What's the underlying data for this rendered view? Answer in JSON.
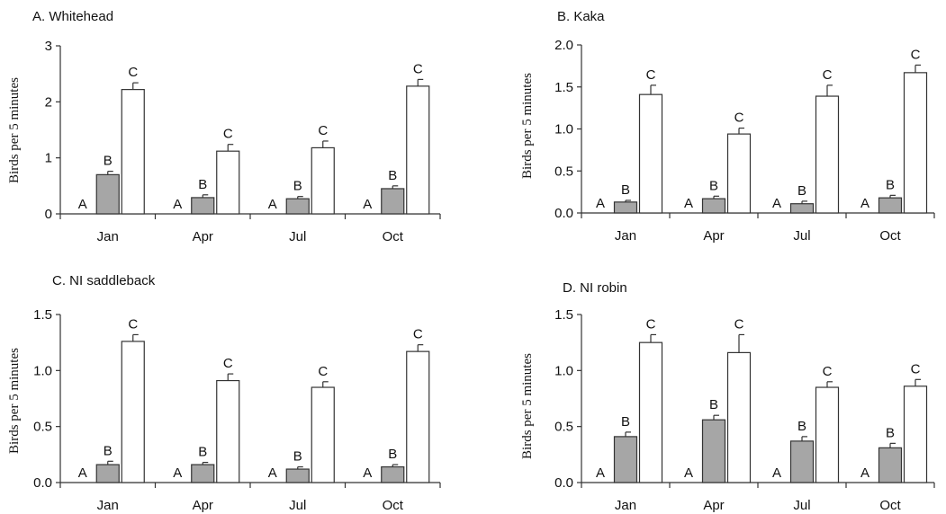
{
  "chart_data": [
    {
      "type": "bar",
      "title": "A. Whitehead",
      "ylabel": "Birds per 5 minutes",
      "xlabel": "",
      "categories": [
        "Jan",
        "Apr",
        "Jul",
        "Oct"
      ],
      "ylim": [
        0,
        3
      ],
      "yticks": [
        "0",
        "1",
        "2",
        "3"
      ],
      "series": [
        {
          "values": [
            0,
            0,
            0,
            0
          ],
          "errors": [
            0,
            0,
            0,
            0
          ],
          "letters": [
            "A",
            "A",
            "A",
            "A"
          ],
          "color": "#ffffff"
        },
        {
          "values": [
            0.7,
            0.29,
            0.27,
            0.45
          ],
          "errors": [
            0.06,
            0.05,
            0.04,
            0.05
          ],
          "letters": [
            "B",
            "B",
            "B",
            "B"
          ],
          "color": "#a6a6a6"
        },
        {
          "values": [
            2.22,
            1.12,
            1.18,
            2.28
          ],
          "errors": [
            0.12,
            0.12,
            0.12,
            0.12
          ],
          "letters": [
            "C",
            "C",
            "C",
            "C"
          ],
          "color": "#ffffff"
        }
      ]
    },
    {
      "type": "bar",
      "title": "B. Kaka",
      "ylabel": "Birds per 5 minutes",
      "xlabel": "",
      "categories": [
        "Jan",
        "Apr",
        "Jul",
        "Oct"
      ],
      "ylim": [
        0,
        2
      ],
      "yticks": [
        "0.0",
        "0.5",
        "1.0",
        "1.5",
        "2.0"
      ],
      "series": [
        {
          "values": [
            0,
            0,
            0,
            0
          ],
          "errors": [
            0,
            0,
            0,
            0
          ],
          "letters": [
            "A",
            "A",
            "A",
            "A"
          ],
          "color": "#ffffff"
        },
        {
          "values": [
            0.13,
            0.17,
            0.11,
            0.18
          ],
          "errors": [
            0.02,
            0.03,
            0.03,
            0.03
          ],
          "letters": [
            "B",
            "B",
            "B",
            "B"
          ],
          "color": "#a6a6a6"
        },
        {
          "values": [
            1.41,
            0.94,
            1.39,
            1.67
          ],
          "errors": [
            0.11,
            0.07,
            0.13,
            0.09
          ],
          "letters": [
            "C",
            "C",
            "C",
            "C"
          ],
          "color": "#ffffff"
        }
      ]
    },
    {
      "type": "bar",
      "title": "C. NI saddleback",
      "ylabel": "Birds per 5 minutes",
      "xlabel": "",
      "categories": [
        "Jan",
        "Apr",
        "Jul",
        "Oct"
      ],
      "ylim": [
        0,
        1.5
      ],
      "yticks": [
        "0.0",
        "0.5",
        "1.0",
        "1.5"
      ],
      "series": [
        {
          "values": [
            0,
            0,
            0,
            0
          ],
          "errors": [
            0,
            0,
            0,
            0
          ],
          "letters": [
            "A",
            "A",
            "A",
            "A"
          ],
          "color": "#ffffff"
        },
        {
          "values": [
            0.16,
            0.16,
            0.12,
            0.14
          ],
          "errors": [
            0.03,
            0.02,
            0.02,
            0.02
          ],
          "letters": [
            "B",
            "B",
            "B",
            "B"
          ],
          "color": "#a6a6a6"
        },
        {
          "values": [
            1.26,
            0.91,
            0.85,
            1.17
          ],
          "errors": [
            0.06,
            0.06,
            0.05,
            0.06
          ],
          "letters": [
            "C",
            "C",
            "C",
            "C"
          ],
          "color": "#ffffff"
        }
      ]
    },
    {
      "type": "bar",
      "title": "D. NI robin",
      "ylabel": "Birds per 5 minutes",
      "xlabel": "",
      "categories": [
        "Jan",
        "Apr",
        "Jul",
        "Oct"
      ],
      "ylim": [
        0,
        1.5
      ],
      "yticks": [
        "0.0",
        "0.5",
        "1.0",
        "1.5"
      ],
      "series": [
        {
          "values": [
            0,
            0,
            0,
            0
          ],
          "errors": [
            0,
            0,
            0,
            0
          ],
          "letters": [
            "A",
            "A",
            "A",
            "A"
          ],
          "color": "#ffffff"
        },
        {
          "values": [
            0.41,
            0.56,
            0.37,
            0.31
          ],
          "errors": [
            0.04,
            0.04,
            0.04,
            0.04
          ],
          "letters": [
            "B",
            "B",
            "B",
            "B"
          ],
          "color": "#a6a6a6"
        },
        {
          "values": [
            1.25,
            1.16,
            0.85,
            0.86
          ],
          "errors": [
            0.07,
            0.16,
            0.05,
            0.06
          ],
          "letters": [
            "C",
            "C",
            "C",
            "C"
          ],
          "color": "#ffffff"
        }
      ]
    }
  ]
}
